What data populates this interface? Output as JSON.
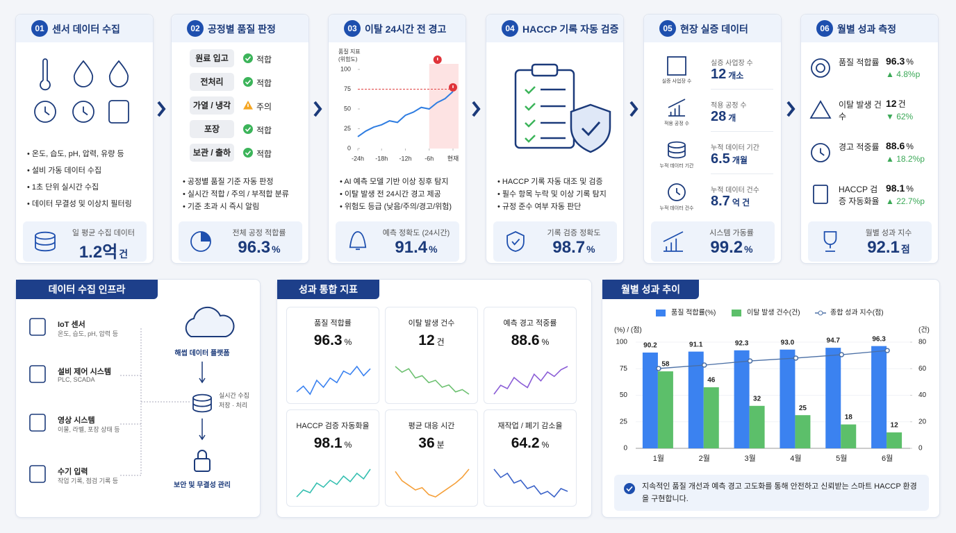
{
  "steps": [
    {
      "number": "01",
      "title": "센서 데이터 수집",
      "bullets": [
        "온도, 습도, pH, 압력, 유량 등",
        "설비 가동 데이터 수집",
        "1초 단위 실시간 수집",
        "데이터 무결성 및 이상치 필터링"
      ],
      "stat": {
        "label": "일 평균 수집 데이터",
        "value": "1.2억",
        "unit": "건"
      }
    },
    {
      "number": "02",
      "title": "공정별 품질 판정",
      "checks": [
        {
          "stage": "원료 입고",
          "status": "적합"
        },
        {
          "stage": "전처리",
          "status": "적합"
        },
        {
          "stage": "가열 / 냉각",
          "status": "주의"
        },
        {
          "stage": "포장",
          "status": "적합"
        },
        {
          "stage": "보관 / 출하",
          "status": "적합"
        }
      ],
      "bullets": [
        "공정별 품질 기준 자동 판정",
        "실시간 적합 / 주의 / 부적합 분류",
        "기준 초과 시 즉시 알림"
      ],
      "stat": {
        "label": "전체 공정 적합률",
        "value": "96.3",
        "unit": "%"
      }
    },
    {
      "number": "03",
      "title": "이탈 24시간 전 경고",
      "chart": {
        "type": "line",
        "y_label": [
          "품질 지표",
          "(위험도)"
        ],
        "color": "#2f7de1",
        "x": [
          -24,
          -22,
          -20,
          -18,
          -16,
          -14,
          -12,
          -10,
          -8,
          -6,
          -4,
          -2,
          0
        ],
        "values": [
          15,
          22,
          27,
          30,
          35,
          33,
          42,
          46,
          52,
          50,
          58,
          63,
          72
        ],
        "xlim": [
          -24,
          0
        ],
        "xticks": [
          {
            "value": -24,
            "label": "-24h"
          },
          {
            "value": -18,
            "label": "-18h"
          },
          {
            "value": -12,
            "label": "-12h"
          },
          {
            "value": -6,
            "label": "-6h"
          },
          {
            "value": 0,
            "label": "현재"
          }
        ],
        "ylim": [
          0,
          100
        ],
        "yticks": [
          0,
          25,
          50,
          75,
          100
        ],
        "threshold": 75,
        "warning_range": [
          -6,
          0
        ]
      },
      "bullets": [
        "AI 예측 모델 기반 이상 징후 탐지",
        "이탈 발생 전 24시간 경고 제공",
        "위험도 등급 (낮음/주의/경고/위험)"
      ],
      "stat": {
        "label": "예측 정확도 (24시간)",
        "value": "91.4",
        "unit": "%"
      }
    },
    {
      "number": "04",
      "title": "HACCP 기록 자동 검증",
      "bullets": [
        "HACCP 기록 자동 대조 및 검증",
        "필수 항목 누락 및 이상 기록 탐지",
        "규정 준수 여부 자동 판단"
      ],
      "stat": {
        "label": "기록 검증 정확도",
        "value": "98.7",
        "unit": "%"
      }
    },
    {
      "number": "05",
      "title": "현장 실증 데이터",
      "items": [
        {
          "icon_label": "실증 사업장 수",
          "label": "실증 사업장 수",
          "value": "12",
          "unit": "개소"
        },
        {
          "icon_label": "적용 공정 수",
          "label": "적용 공정 수",
          "value": "28",
          "unit": "개"
        },
        {
          "icon_label": "누적 데이터 기간",
          "label": "누적 데이터 기간",
          "value": "6.5",
          "unit": "개월"
        },
        {
          "icon_label": "누적 데이터 건수",
          "label": "누적 데이터 건수",
          "value": "8.7",
          "unit": "억 건"
        }
      ],
      "stat": {
        "label": "시스템 가동률",
        "value": "99.2",
        "unit": "%"
      }
    },
    {
      "number": "06",
      "title": "월별 성과 측정",
      "items": [
        {
          "label": "품질 적합률",
          "value": "96.3",
          "unit": "%",
          "change": "▲ 4.8%p"
        },
        {
          "label": "이탈 발생 건수",
          "value": "12",
          "unit": "건",
          "change": "▼ 62%"
        },
        {
          "label": "경고 적중률",
          "value": "88.6",
          "unit": "%",
          "change": "▲ 18.2%p"
        },
        {
          "label": "HACCP 검증 자동화율",
          "value": "98.1",
          "unit": "%",
          "change": "▲ 22.7%p"
        }
      ],
      "stat": {
        "label": "월별 성과 지수",
        "value": "92.1",
        "unit": "점"
      }
    }
  ],
  "infra": {
    "title": "데이터 수집 인프라",
    "sources": [
      {
        "name": "IoT 센서",
        "desc": "온도, 습도, pH, 압력 등"
      },
      {
        "name": "설비 제어 시스템",
        "desc": "PLC, SCADA"
      },
      {
        "name": "영상 시스템",
        "desc": "이물, 라벨, 포장 상태 등"
      },
      {
        "name": "수기 입력",
        "desc": "작업 기록, 점검 기록 등"
      }
    ],
    "platform": "해썹 데이터 플랫폼",
    "storage": [
      "실시간 수집",
      "저장 · 처리"
    ],
    "security": "보안 및 무결성 관리"
  },
  "kpis": {
    "title": "성과 통합 지표",
    "tiles": [
      {
        "label": "품질 적합률",
        "value": "96.3",
        "unit": "%",
        "color": "#3b82f0",
        "trend": [
          40,
          45,
          38,
          50,
          44,
          52,
          48,
          58,
          55,
          62,
          54,
          60
        ]
      },
      {
        "label": "이탈 발생 건수",
        "value": "12",
        "unit": "건",
        "color": "#6cc070",
        "trend": [
          60,
          55,
          58,
          50,
          52,
          46,
          48,
          42,
          44,
          38,
          40,
          36
        ]
      },
      {
        "label": "예측 경고 적중률",
        "value": "88.6",
        "unit": "%",
        "color": "#8a5cd6",
        "trend": [
          40,
          48,
          45,
          55,
          50,
          46,
          58,
          52,
          60,
          56,
          62,
          65
        ]
      },
      {
        "label": "HACCP 검증 자동화율",
        "value": "98.1",
        "unit": "%",
        "color": "#35bfb0",
        "trend": [
          40,
          45,
          43,
          50,
          47,
          52,
          49,
          55,
          51,
          57,
          53,
          60
        ]
      },
      {
        "label": "평균 대응 시간",
        "value": "36",
        "unit": "분",
        "color": "#f5a03a",
        "trend": [
          60,
          52,
          48,
          44,
          46,
          40,
          38,
          42,
          46,
          50,
          55,
          62
        ]
      },
      {
        "label": "재작업 / 폐기 감소율",
        "value": "64.2",
        "unit": "%",
        "color": "#3a62c8",
        "trend": [
          58,
          52,
          55,
          48,
          50,
          44,
          46,
          40,
          42,
          38,
          44,
          42
        ]
      }
    ]
  },
  "trend": {
    "title": "월별 성과 추이",
    "chart": {
      "type": "combo",
      "categories": [
        "1월",
        "2월",
        "3월",
        "4월",
        "5월",
        "6월"
      ],
      "y_label": "(%) / (점)",
      "y2_label": "(건)",
      "ylim": [
        0,
        100
      ],
      "yticks": [
        0,
        25,
        50,
        75,
        100
      ],
      "y2lim": [
        0,
        80
      ],
      "y2ticks": [
        0,
        20,
        40,
        60,
        80
      ],
      "series": [
        {
          "name": "품질 적합률(%)",
          "type": "bar",
          "color": "#3b82f0",
          "values": [
            90.2,
            91.1,
            92.3,
            93.0,
            94.7,
            96.3
          ],
          "value_labels": [
            "90.2",
            "91.1",
            "92.3",
            "93.0",
            "94.7",
            "96.3"
          ]
        },
        {
          "name": "이탈 발생 건수(건)",
          "type": "bar",
          "axis": "y2",
          "color": "#5cbf6a",
          "values": [
            58,
            46,
            32,
            25,
            18,
            12
          ]
        },
        {
          "name": "종합 성과 지수(점)",
          "type": "line",
          "color": "#4a6fa5",
          "values": [
            75.2,
            78.4,
            82.3,
            85.0,
            88.2,
            92.1
          ]
        }
      ]
    },
    "note": "지속적인 품질 개선과 예측 경고 고도화를 통해 안전하고 신뢰받는 스마트 HACCP 환경을 구현합니다."
  }
}
